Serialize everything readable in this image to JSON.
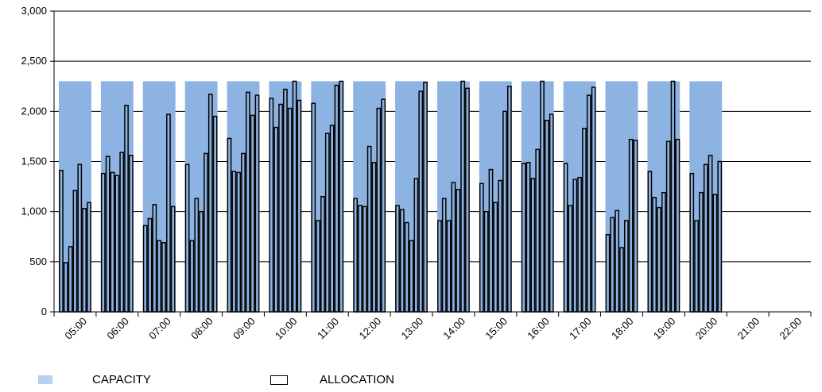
{
  "chart_data": {
    "type": "bar",
    "ylim": [
      0,
      3000
    ],
    "y_ticks": [
      "0",
      "500",
      "1,000",
      "1,500",
      "2,000",
      "2,500",
      "3,000"
    ],
    "hour_labels": [
      "05:00",
      "06:00",
      "07:00",
      "08:00",
      "09:00",
      "10:00",
      "11:00",
      "12:00",
      "13:00",
      "14:00",
      "15:00",
      "16:00",
      "17:00",
      "18:00",
      "19:00",
      "20:00",
      "21:00",
      "22:00"
    ],
    "grid": true,
    "legend_position": "bottom-left",
    "series": [
      {
        "name": "CAPACITY",
        "color": "#8db3e2",
        "legend_color": "#b8d1f0",
        "values": [
          2300,
          2300,
          2300,
          2300,
          2300,
          2300,
          2300,
          2300,
          2300,
          2300,
          2300,
          2300,
          2300,
          2300,
          2300,
          2300,
          0,
          0
        ]
      },
      {
        "name": "ALLOCATION",
        "color": "#000000",
        "values": [
          [
            1410,
            490,
            650,
            1210,
            1470,
            1030,
            1090
          ],
          [
            1380,
            1550,
            1390,
            1360,
            1590,
            2060,
            1560
          ],
          [
            860,
            930,
            1070,
            710,
            690,
            1970,
            1050
          ],
          [
            1470,
            710,
            1130,
            1000,
            1580,
            2170,
            1950
          ],
          [
            1730,
            1400,
            1390,
            1580,
            2190,
            1960,
            2160
          ],
          [
            2130,
            1840,
            2070,
            2220,
            2030,
            2300,
            2110
          ],
          [
            2080,
            910,
            1150,
            1780,
            1860,
            2260,
            2300
          ],
          [
            1130,
            1060,
            1050,
            1650,
            1490,
            2030,
            2120
          ],
          [
            1060,
            1020,
            890,
            710,
            1330,
            2200,
            2290
          ],
          [
            910,
            1130,
            910,
            1290,
            1220,
            2300,
            2230
          ],
          [
            1280,
            1000,
            1420,
            1090,
            1310,
            2000,
            2250
          ],
          [
            1480,
            1490,
            1330,
            1620,
            2300,
            1910,
            1970
          ],
          [
            1480,
            1060,
            1320,
            1340,
            1830,
            2160,
            2240
          ],
          [
            770,
            940,
            1010,
            640,
            910,
            1720,
            1710
          ],
          [
            1400,
            1140,
            1040,
            1190,
            1700,
            2300,
            1720
          ],
          [
            1380,
            910,
            1190,
            1470,
            1560,
            1170,
            1500
          ]
        ]
      }
    ]
  }
}
